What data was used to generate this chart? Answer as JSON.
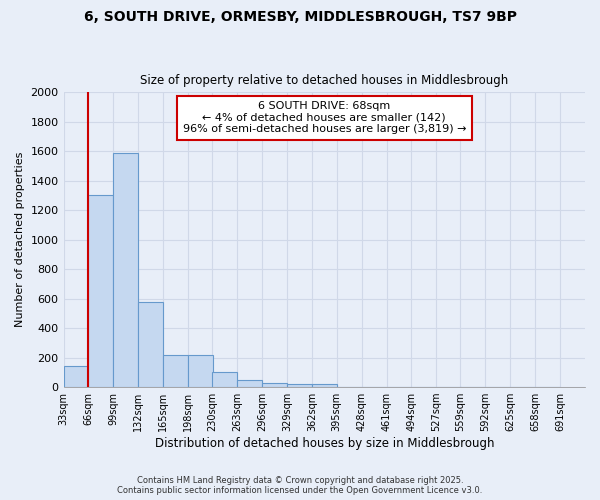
{
  "title1": "6, SOUTH DRIVE, ORMESBY, MIDDLESBROUGH, TS7 9BP",
  "title2": "Size of property relative to detached houses in Middlesbrough",
  "xlabel": "Distribution of detached houses by size in Middlesbrough",
  "ylabel": "Number of detached properties",
  "bin_labels": [
    "33sqm",
    "66sqm",
    "99sqm",
    "132sqm",
    "165sqm",
    "198sqm",
    "230sqm",
    "263sqm",
    "296sqm",
    "329sqm",
    "362sqm",
    "395sqm",
    "428sqm",
    "461sqm",
    "494sqm",
    "527sqm",
    "559sqm",
    "592sqm",
    "625sqm",
    "658sqm",
    "691sqm"
  ],
  "bin_edges": [
    33,
    66,
    99,
    132,
    165,
    198,
    230,
    263,
    296,
    329,
    362,
    395,
    428,
    461,
    494,
    527,
    559,
    592,
    625,
    658,
    691
  ],
  "bar_heights": [
    140,
    1300,
    1590,
    580,
    215,
    215,
    100,
    50,
    25,
    20,
    20,
    0,
    0,
    0,
    0,
    0,
    0,
    0,
    0,
    0
  ],
  "bar_color": "#c5d8f0",
  "bar_edge_color": "#6699cc",
  "bar_edge_width": 0.8,
  "red_line_x": 66,
  "annotation_title": "6 SOUTH DRIVE: 68sqm",
  "annotation_line1": "← 4% of detached houses are smaller (142)",
  "annotation_line2": "96% of semi-detached houses are larger (3,819) →",
  "annotation_box_color": "#ffffff",
  "annotation_box_edge_color": "#cc0000",
  "red_line_color": "#cc0000",
  "ylim": [
    0,
    2000
  ],
  "yticks": [
    0,
    200,
    400,
    600,
    800,
    1000,
    1200,
    1400,
    1600,
    1800,
    2000
  ],
  "grid_color": "#d0d8e8",
  "background_color": "#e8eef8",
  "plot_bg_color": "#e8eef8",
  "footer1": "Contains HM Land Registry data © Crown copyright and database right 2025.",
  "footer2": "Contains public sector information licensed under the Open Government Licence v3.0."
}
